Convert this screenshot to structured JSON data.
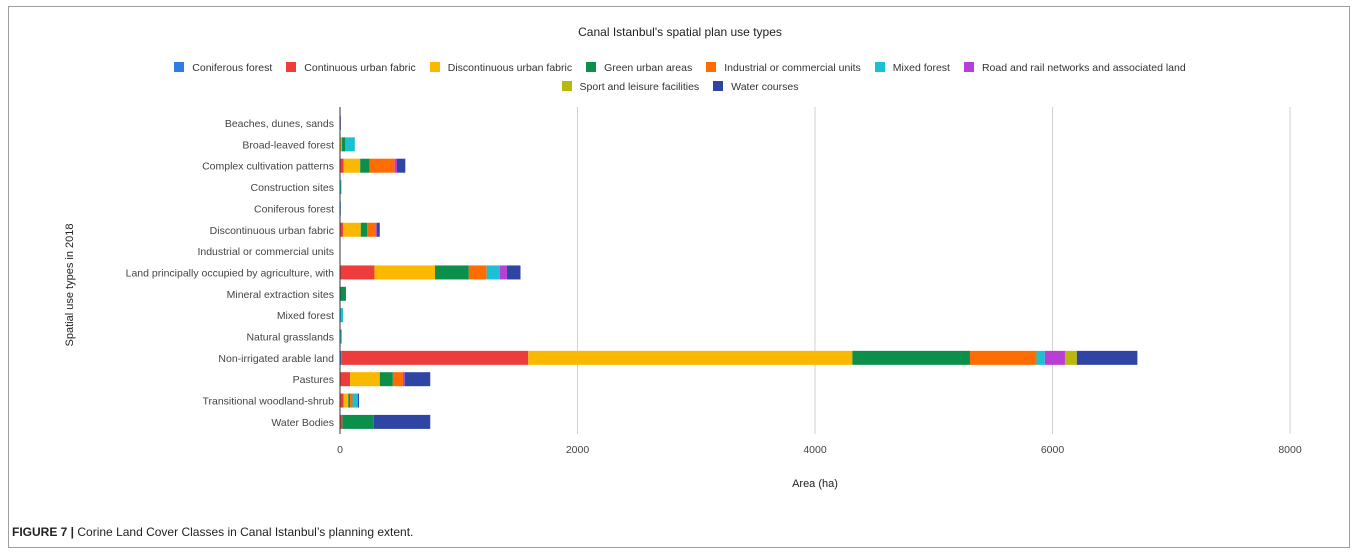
{
  "caption": {
    "label": "FIGURE 7 |",
    "text": " Corine Land Cover Classes in Canal Istanbul’s planning extent."
  },
  "chart_data": {
    "type": "bar",
    "orientation": "horizontal",
    "stacked": true,
    "title": "Canal Istanbul's spatial plan use types",
    "xlabel": "Area (ha)",
    "ylabel": "Spatial use types in 2018",
    "xlim": [
      0,
      8000
    ],
    "xticks": [
      0,
      2000,
      4000,
      6000,
      8000
    ],
    "grid": true,
    "legend_position": "top",
    "categories": [
      "Beaches, dunes, sands",
      "Broad-leaved forest",
      "Complex cultivation patterns",
      "Construction sites",
      "Coniferous forest",
      "Discontinuous urban fabric",
      "Industrial or commercial units",
      "Land principally occupied by agriculture, with",
      "Mineral extraction sites",
      "Mixed forest",
      "Natural grasslands",
      "Non-irrigated arable land",
      "Pastures",
      "Transitional woodland-shrub",
      "Water Bodies"
    ],
    "series": [
      {
        "name": "Coniferous forest",
        "color": "#2b7fe0",
        "values": [
          0,
          5,
          0,
          0,
          3,
          0,
          0,
          0,
          0,
          0,
          0,
          15,
          0,
          0,
          0
        ]
      },
      {
        "name": "Continuous urban fabric",
        "color": "#ee3b3b",
        "values": [
          0,
          0,
          30,
          0,
          0,
          25,
          0,
          290,
          0,
          0,
          0,
          1570,
          85,
          30,
          20
        ]
      },
      {
        "name": "Discontinuous urban fabric",
        "color": "#fbb800",
        "values": [
          0,
          10,
          140,
          0,
          0,
          150,
          0,
          510,
          0,
          0,
          0,
          2730,
          250,
          40,
          0
        ]
      },
      {
        "name": "Green urban areas",
        "color": "#0b8f4a",
        "values": [
          0,
          30,
          80,
          0,
          0,
          55,
          0,
          285,
          50,
          0,
          0,
          990,
          110,
          15,
          265
        ]
      },
      {
        "name": "Industrial or commercial units",
        "color": "#ff6d01",
        "values": [
          0,
          0,
          210,
          0,
          0,
          70,
          0,
          150,
          0,
          0,
          0,
          560,
          85,
          20,
          0
        ]
      },
      {
        "name": "Mixed forest",
        "color": "#1bc0d2",
        "values": [
          0,
          80,
          0,
          12,
          0,
          0,
          0,
          110,
          0,
          25,
          15,
          70,
          0,
          45,
          0
        ]
      },
      {
        "name": "Road and rail networks and associated land",
        "color": "#b93ed6",
        "values": [
          0,
          0,
          20,
          0,
          0,
          10,
          0,
          60,
          0,
          0,
          0,
          170,
          15,
          0,
          0
        ]
      },
      {
        "name": "Sport and leisure facilities",
        "color": "#b8b90a",
        "values": [
          0,
          0,
          0,
          0,
          0,
          0,
          0,
          0,
          0,
          0,
          0,
          100,
          0,
          0,
          0
        ]
      },
      {
        "name": "Water courses",
        "color": "#2f45a3",
        "values": [
          3,
          0,
          70,
          0,
          0,
          25,
          0,
          115,
          0,
          0,
          0,
          510,
          215,
          10,
          475
        ]
      }
    ]
  }
}
